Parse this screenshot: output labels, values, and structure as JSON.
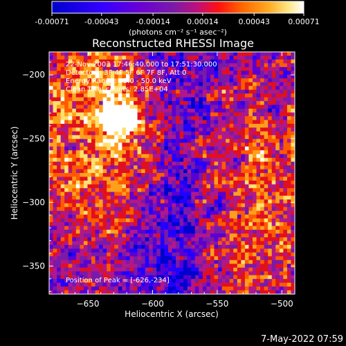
{
  "colorbar": {
    "tick_labels": [
      "-0.00071",
      "-0.00043",
      "-0.00014",
      "0.00014",
      "0.00043",
      "0.00071"
    ],
    "units": "(photons cm⁻² s⁻¹ asec⁻²)",
    "range": [
      -0.00071,
      0.00071
    ]
  },
  "chart_data": {
    "type": "heatmap",
    "title": "Reconstructed RHESSI Image",
    "xlabel": "Heliocentric X (arcsec)",
    "ylabel": "Heliocentric Y (arcsec)",
    "xlim": [
      -680,
      -490
    ],
    "ylim": [
      -372,
      -182
    ],
    "xticks": [
      -650,
      -600,
      -550,
      -500
    ],
    "yticks": [
      -200,
      -250,
      -300,
      -350
    ],
    "xtick_labels": [
      "−650",
      "−600",
      "−550",
      "−500"
    ],
    "ytick_labels": [
      "−200",
      "−250",
      "−300",
      "−350"
    ],
    "annotations": [
      "22-Nov-2003 17:46:40.000 to 17:51:30.000",
      "Detectors: 3F 4F 5F 6F 7F 8F, Att 0",
      "Energy Range: 25.0 - 50.0 keV",
      "Clean      Total counts: 2.85E+04"
    ],
    "peak_label": "Position of Peak = [-626,-234]",
    "peak": [
      -626,
      -234
    ],
    "colormap_colors": [
      "#0000cc",
      "#2200ff",
      "#5a00d0",
      "#7a1aa8",
      "#b0188a",
      "#e0101f",
      "#ff5a00",
      "#ffa01c",
      "#ffe070",
      "#ffffff"
    ]
  },
  "footer": {
    "timestamp": "7-May-2022 07:59"
  }
}
